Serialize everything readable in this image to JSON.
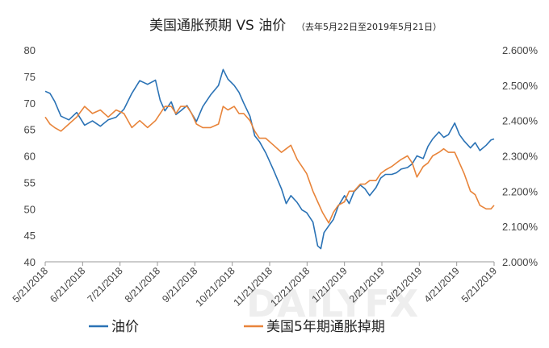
{
  "chart_data": {
    "type": "line",
    "title": "美国通胀预期 VS 油价",
    "subtitle": "（去年5月22日至2019年5月21日）",
    "watermark": "DAILYFX",
    "x_labels": [
      "5/21/2018",
      "6/21/2018",
      "7/21/2018",
      "8/21/2018",
      "9/21/2018",
      "10/21/2018",
      "11/21/2018",
      "12/21/2018",
      "1/21/2019",
      "2/21/2019",
      "3/21/2019",
      "4/21/2019",
      "5/21/2019"
    ],
    "y_left": {
      "min": 40,
      "max": 80,
      "ticks": [
        "40",
        "45",
        "50",
        "55",
        "60",
        "65",
        "70",
        "75",
        "80"
      ]
    },
    "y_right": {
      "min": 2.0,
      "max": 2.6,
      "ticks": [
        "2.000%",
        "2.100%",
        "2.200%",
        "2.300%",
        "2.400%",
        "2.500%",
        "2.600%"
      ]
    },
    "grid": false,
    "legend_position": "bottom",
    "series": [
      {
        "name": "油价",
        "axis": "left",
        "color": "#2a72b5",
        "points": [
          [
            0,
            72.2
          ],
          [
            0.3,
            71.8
          ],
          [
            0.6,
            70.3
          ],
          [
            1.0,
            67.5
          ],
          [
            1.5,
            66.8
          ],
          [
            2.0,
            68.2
          ],
          [
            2.5,
            65.8
          ],
          [
            3.0,
            66.6
          ],
          [
            3.5,
            65.6
          ],
          [
            4.0,
            66.8
          ],
          [
            4.5,
            67.3
          ],
          [
            5.0,
            68.8
          ],
          [
            5.5,
            71.8
          ],
          [
            6.0,
            74.2
          ],
          [
            6.5,
            73.5
          ],
          [
            7.0,
            74.3
          ],
          [
            7.3,
            70.5
          ],
          [
            7.6,
            68.5
          ],
          [
            8.0,
            70.2
          ],
          [
            8.3,
            67.8
          ],
          [
            8.6,
            68.5
          ],
          [
            9.0,
            69.5
          ],
          [
            9.3,
            68.0
          ],
          [
            9.6,
            66.5
          ],
          [
            10.0,
            69.3
          ],
          [
            10.5,
            71.5
          ],
          [
            11.0,
            73.3
          ],
          [
            11.3,
            76.3
          ],
          [
            11.6,
            74.5
          ],
          [
            12.0,
            73.3
          ],
          [
            12.3,
            72.0
          ],
          [
            12.6,
            70.0
          ],
          [
            13.0,
            67.5
          ],
          [
            13.3,
            63.8
          ],
          [
            13.6,
            62.7
          ],
          [
            14.0,
            60.6
          ],
          [
            14.5,
            57.3
          ],
          [
            15.0,
            53.8
          ],
          [
            15.3,
            51.0
          ],
          [
            15.6,
            52.5
          ],
          [
            16.0,
            51.2
          ],
          [
            16.3,
            49.8
          ],
          [
            16.6,
            49.3
          ],
          [
            17.0,
            47.5
          ],
          [
            17.3,
            43.0
          ],
          [
            17.5,
            42.5
          ],
          [
            17.7,
            45.5
          ],
          [
            18.0,
            46.8
          ],
          [
            18.3,
            48.0
          ],
          [
            18.6,
            50.5
          ],
          [
            19.0,
            52.5
          ],
          [
            19.3,
            51.0
          ],
          [
            19.6,
            53.2
          ],
          [
            20.0,
            54.5
          ],
          [
            20.3,
            53.8
          ],
          [
            20.6,
            52.5
          ],
          [
            21.0,
            54.0
          ],
          [
            21.3,
            55.8
          ],
          [
            21.6,
            56.5
          ],
          [
            22.0,
            56.5
          ],
          [
            22.3,
            56.8
          ],
          [
            22.6,
            57.5
          ],
          [
            23.0,
            57.8
          ],
          [
            23.3,
            58.5
          ],
          [
            23.6,
            60.0
          ],
          [
            24.0,
            59.5
          ],
          [
            24.3,
            61.8
          ],
          [
            24.6,
            63.2
          ],
          [
            25.0,
            64.5
          ],
          [
            25.3,
            63.5
          ],
          [
            25.6,
            64.0
          ],
          [
            26.0,
            66.2
          ],
          [
            26.3,
            64.0
          ],
          [
            26.6,
            62.8
          ],
          [
            27.0,
            61.5
          ],
          [
            27.3,
            62.5
          ],
          [
            27.6,
            61.0
          ],
          [
            28.0,
            62.0
          ],
          [
            28.3,
            63.0
          ],
          [
            28.5,
            63.2
          ]
        ]
      },
      {
        "name": "美国5年期通胀掉期",
        "axis": "right",
        "color": "#e8843a",
        "points": [
          [
            0,
            2.41
          ],
          [
            0.3,
            2.39
          ],
          [
            0.6,
            2.38
          ],
          [
            1.0,
            2.37
          ],
          [
            1.5,
            2.39
          ],
          [
            2.0,
            2.41
          ],
          [
            2.5,
            2.44
          ],
          [
            3.0,
            2.42
          ],
          [
            3.5,
            2.43
          ],
          [
            4.0,
            2.41
          ],
          [
            4.5,
            2.43
          ],
          [
            5.0,
            2.42
          ],
          [
            5.5,
            2.38
          ],
          [
            6.0,
            2.4
          ],
          [
            6.5,
            2.38
          ],
          [
            7.0,
            2.4
          ],
          [
            7.3,
            2.42
          ],
          [
            7.6,
            2.44
          ],
          [
            8.0,
            2.44
          ],
          [
            8.3,
            2.42
          ],
          [
            8.6,
            2.44
          ],
          [
            9.0,
            2.44
          ],
          [
            9.3,
            2.42
          ],
          [
            9.6,
            2.39
          ],
          [
            10.0,
            2.38
          ],
          [
            10.5,
            2.38
          ],
          [
            11.0,
            2.39
          ],
          [
            11.3,
            2.44
          ],
          [
            11.6,
            2.43
          ],
          [
            12.0,
            2.44
          ],
          [
            12.3,
            2.42
          ],
          [
            12.6,
            2.42
          ],
          [
            13.0,
            2.4
          ],
          [
            13.3,
            2.37
          ],
          [
            13.6,
            2.35
          ],
          [
            14.0,
            2.35
          ],
          [
            14.5,
            2.33
          ],
          [
            15.0,
            2.31
          ],
          [
            15.3,
            2.32
          ],
          [
            15.6,
            2.33
          ],
          [
            16.0,
            2.29
          ],
          [
            16.3,
            2.27
          ],
          [
            16.6,
            2.25
          ],
          [
            17.0,
            2.2
          ],
          [
            17.3,
            2.17
          ],
          [
            17.6,
            2.14
          ],
          [
            18.0,
            2.11
          ],
          [
            18.3,
            2.14
          ],
          [
            18.6,
            2.16
          ],
          [
            19.0,
            2.17
          ],
          [
            19.3,
            2.2
          ],
          [
            19.6,
            2.2
          ],
          [
            20.0,
            2.22
          ],
          [
            20.3,
            2.22
          ],
          [
            20.6,
            2.23
          ],
          [
            21.0,
            2.23
          ],
          [
            21.3,
            2.25
          ],
          [
            21.6,
            2.26
          ],
          [
            22.0,
            2.27
          ],
          [
            22.3,
            2.28
          ],
          [
            22.6,
            2.29
          ],
          [
            23.0,
            2.3
          ],
          [
            23.3,
            2.28
          ],
          [
            23.6,
            2.24
          ],
          [
            24.0,
            2.27
          ],
          [
            24.3,
            2.28
          ],
          [
            24.6,
            2.3
          ],
          [
            25.0,
            2.31
          ],
          [
            25.3,
            2.32
          ],
          [
            25.6,
            2.31
          ],
          [
            26.0,
            2.31
          ],
          [
            26.3,
            2.28
          ],
          [
            26.6,
            2.25
          ],
          [
            27.0,
            2.2
          ],
          [
            27.3,
            2.19
          ],
          [
            27.6,
            2.16
          ],
          [
            28.0,
            2.15
          ],
          [
            28.3,
            2.15
          ],
          [
            28.5,
            2.16
          ]
        ]
      }
    ],
    "legend": [
      {
        "label": "油价",
        "color": "#2a72b5"
      },
      {
        "label": "美国5年期通胀掉期",
        "color": "#e8843a"
      }
    ]
  }
}
